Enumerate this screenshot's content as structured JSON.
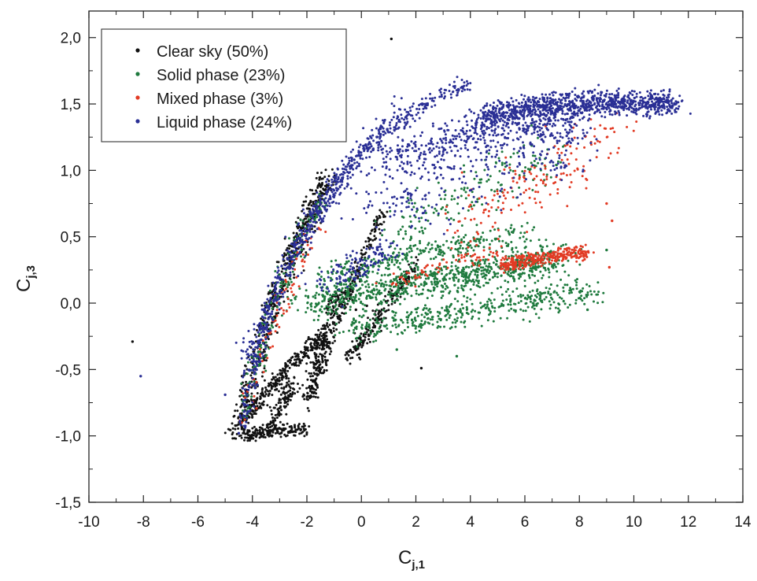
{
  "chart_data": {
    "type": "scatter",
    "title": "",
    "xlabel": {
      "main": "C",
      "sub": "j,1"
    },
    "ylabel": {
      "main": "C",
      "sub": "j,3"
    },
    "xlim": [
      -10,
      14
    ],
    "ylim": [
      -1.5,
      2.2
    ],
    "x_ticks": [
      -10,
      -8,
      -6,
      -4,
      -2,
      0,
      2,
      4,
      6,
      8,
      10,
      12,
      14
    ],
    "x_tick_labels": [
      "-10",
      "-8",
      "-6",
      "-4",
      "-2",
      "0",
      "2",
      "4",
      "6",
      "8",
      "10",
      "12",
      "14"
    ],
    "y_ticks": [
      -1.5,
      -1.0,
      -0.5,
      0.0,
      0.5,
      1.0,
      1.5,
      2.0
    ],
    "y_tick_labels": [
      "-1,5",
      "-1,0",
      "-0,5",
      "0,0",
      "0,5",
      "1,0",
      "1,5",
      "2,0"
    ],
    "grid": false,
    "legend_position": "top-left",
    "series": [
      {
        "name": "Clear sky (50%)",
        "color": "#111111",
        "clusters": [
          {
            "kind": "arc",
            "x0": -4.6,
            "y0": -1.02,
            "x1": -1.2,
            "y1": 0.95,
            "xc": -3.2,
            "yc": 0.2,
            "spread": 0.09,
            "weight": 4
          },
          {
            "kind": "arc",
            "x0": -4.4,
            "y0": -0.9,
            "x1": -1.4,
            "y1": -0.25,
            "xc": -2.6,
            "yc": -0.45,
            "spread": 0.06,
            "weight": 2
          },
          {
            "kind": "arc",
            "x0": -4.3,
            "y0": -1.0,
            "x1": -2.0,
            "y1": -0.95,
            "xc": -3.2,
            "yc": -0.95,
            "spread": 0.05,
            "weight": 1.2
          },
          {
            "kind": "arc",
            "x0": -2.0,
            "y0": -0.75,
            "x1": -0.8,
            "y1": 0.1,
            "xc": -1.4,
            "yc": -0.3,
            "spread": 0.07,
            "weight": 1.5
          },
          {
            "kind": "arc",
            "x0": -1.8,
            "y0": -0.7,
            "x1": 0.8,
            "y1": 0.7,
            "xc": -0.6,
            "yc": 0.05,
            "spread": 0.05,
            "weight": 1.4
          },
          {
            "kind": "arc",
            "x0": -0.4,
            "y0": -0.4,
            "x1": 2.0,
            "y1": 0.3,
            "xc": 0.6,
            "yc": -0.1,
            "spread": 0.06,
            "weight": 1.4
          },
          {
            "kind": "arc",
            "x0": -3.5,
            "y0": -0.95,
            "x1": -2.5,
            "y1": -0.6,
            "xc": -3.0,
            "yc": -0.82,
            "spread": 0.07,
            "weight": 0.8
          }
        ],
        "outliers": [
          [
            1.1,
            1.99
          ],
          [
            -8.4,
            -0.29
          ],
          [
            2.2,
            -0.49
          ],
          [
            -0.2,
            -0.05
          ],
          [
            0.2,
            -0.02
          ]
        ]
      },
      {
        "name": "Solid phase (23%)",
        "color": "#1f7a3e",
        "clusters": [
          {
            "kind": "blob",
            "x0": -2.0,
            "y0": 0.02,
            "x1": 7.5,
            "y1": 0.35,
            "xc": 2.8,
            "yc": 0.18,
            "spread": 0.13,
            "weight": 6
          },
          {
            "kind": "blob",
            "x0": -0.5,
            "y0": -0.2,
            "x1": 8.5,
            "y1": 0.1,
            "xc": 4.0,
            "yc": -0.05,
            "spread": 0.11,
            "weight": 3
          },
          {
            "kind": "blob",
            "x0": -1.5,
            "y0": 0.2,
            "x1": 6.0,
            "y1": 0.55,
            "xc": 2.5,
            "yc": 0.4,
            "spread": 0.08,
            "weight": 1.8
          },
          {
            "kind": "arc",
            "x0": -4.4,
            "y0": -0.85,
            "x1": -1.5,
            "y1": 0.8,
            "xc": -3.1,
            "yc": 0.15,
            "spread": 0.08,
            "weight": 1.2
          },
          {
            "kind": "blob",
            "x0": 1.0,
            "y0": 0.5,
            "x1": 7.0,
            "y1": 1.1,
            "xc": 4.0,
            "yc": 0.85,
            "spread": 0.18,
            "weight": 1.2
          }
        ],
        "outliers": [
          [
            9.0,
            0.4
          ],
          [
            8.3,
            -0.05
          ],
          [
            3.5,
            -0.4
          ],
          [
            1.3,
            -0.35
          ]
        ]
      },
      {
        "name": "Mixed phase (3%)",
        "color": "#e23b24",
        "clusters": [
          {
            "kind": "blob",
            "x0": 5.2,
            "y0": 0.28,
            "x1": 8.3,
            "y1": 0.38,
            "xc": 6.5,
            "yc": 0.35,
            "spread": 0.05,
            "weight": 2.2
          },
          {
            "kind": "blob",
            "x0": 3.5,
            "y0": 0.6,
            "x1": 9.3,
            "y1": 1.3,
            "xc": 6.5,
            "yc": 0.9,
            "spread": 0.22,
            "weight": 1.2
          },
          {
            "kind": "arc",
            "x0": -4.3,
            "y0": -0.85,
            "x1": -1.6,
            "y1": 0.6,
            "xc": -3.0,
            "yc": 0.0,
            "spread": 0.09,
            "weight": 0.6
          },
          {
            "kind": "blob",
            "x0": 1.0,
            "y0": 0.15,
            "x1": 5.0,
            "y1": 0.4,
            "xc": 3.0,
            "yc": 0.28,
            "spread": 0.07,
            "weight": 0.5
          }
        ],
        "outliers": [
          [
            9.1,
            0.27
          ],
          [
            9.2,
            0.62
          ],
          [
            9.0,
            0.75
          ]
        ]
      },
      {
        "name": "Liquid phase (24%)",
        "color": "#2a2f95",
        "clusters": [
          {
            "kind": "blob",
            "x0": 4.5,
            "y0": 1.4,
            "x1": 11.5,
            "y1": 1.5,
            "xc": 8.0,
            "yc": 1.55,
            "spread": 0.09,
            "weight": 7
          },
          {
            "kind": "blob",
            "x0": 1.0,
            "y0": 1.05,
            "x1": 8.0,
            "y1": 1.3,
            "xc": 4.5,
            "yc": 1.4,
            "spread": 0.14,
            "weight": 3
          },
          {
            "kind": "arc",
            "x0": -4.4,
            "y0": -0.95,
            "x1": 4.0,
            "y1": 1.65,
            "xc": -2.6,
            "yc": 1.2,
            "spread": 0.07,
            "weight": 3.4
          },
          {
            "kind": "arc",
            "x0": -4.2,
            "y0": -0.5,
            "x1": 1.5,
            "y1": 1.45,
            "xc": -2.2,
            "yc": 0.7,
            "spread": 0.12,
            "weight": 2
          },
          {
            "kind": "blob",
            "x0": 0.5,
            "y0": 0.7,
            "x1": 8.0,
            "y1": 1.2,
            "xc": 4.0,
            "yc": 0.95,
            "spread": 0.22,
            "weight": 1.6
          },
          {
            "kind": "blob",
            "x0": -1.5,
            "y0": 0.1,
            "x1": 1.0,
            "y1": 0.4,
            "xc": -0.3,
            "yc": 0.25,
            "spread": 0.1,
            "weight": 0.9
          }
        ],
        "outliers": [
          [
            -8.1,
            -0.55
          ],
          [
            -5.0,
            -0.69
          ],
          [
            -4.5,
            -0.98
          ]
        ]
      }
    ]
  }
}
